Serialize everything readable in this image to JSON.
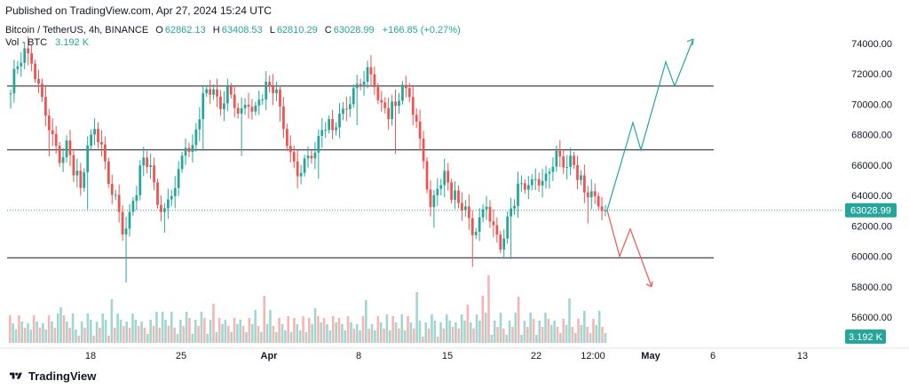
{
  "header": {
    "published": "Published on TradingView.com, Apr 27, 2024 15:24 UTC"
  },
  "legend": {
    "symbol": "Bitcoin / TetherUS, 4h, BINANCE",
    "open_label": "O",
    "open": "62862.13",
    "high_label": "H",
    "high": "63408.53",
    "low_label": "L",
    "low": "62810.29",
    "close_label": "C",
    "close": "63028.99",
    "change": "+166.85 (+0.27%)"
  },
  "volume": {
    "label": "Vol · BTC",
    "value": "3.192 K"
  },
  "footer": {
    "brand": "TradingView"
  },
  "colors": {
    "up": "#26a69a",
    "down": "#ef5350",
    "vol_up": "#9fd6d0",
    "vol_down": "#f7b4b2",
    "level_line": "#131722",
    "price_line": "#26a69a"
  },
  "chart_data": {
    "type": "candlestick",
    "price_axis": {
      "ticks": [
        "74000.00",
        "72000.00",
        "70000.00",
        "68000.00",
        "66000.00",
        "64000.00",
        "62000.00",
        "60000.00",
        "58000.00",
        "56000.00"
      ],
      "ylim": [
        55000,
        75000
      ],
      "last_price_label": "63028.99",
      "volume_label": "3.192 K"
    },
    "time_axis": {
      "labels": [
        "18",
        "25",
        "Apr",
        "8",
        "15",
        "22",
        "12:00",
        "May",
        "6",
        "13"
      ]
    },
    "horizontal_levels": [
      71200,
      67000,
      59900
    ],
    "last_price": 63028.99,
    "closes": [
      71200,
      72500,
      73200,
      72800,
      71000,
      69500,
      67800,
      66500,
      67500,
      65800,
      64500,
      66800,
      68500,
      67000,
      65000,
      63800,
      61800,
      62800,
      64500,
      66500,
      65500,
      63500,
      62800,
      64200,
      65500,
      67500,
      67200,
      69500,
      71000,
      70500,
      69800,
      70800,
      70000,
      69500,
      70200,
      69800,
      70800,
      71200,
      70500,
      68500,
      66500,
      65500,
      66200,
      66800,
      67800,
      68800,
      68300,
      68900,
      69800,
      70700,
      71500,
      72200,
      71500,
      70000,
      69500,
      69900,
      70800,
      70600,
      68500,
      66500,
      63000,
      64800,
      65500,
      64200,
      63500,
      62800,
      61500,
      62200,
      63500,
      61800,
      60800,
      62500,
      63800,
      64800,
      64200,
      65200,
      64600,
      65800,
      66700,
      66200,
      66500,
      65500,
      64200,
      63800,
      63400,
      63029
    ],
    "projection": {
      "bullish": [
        [
          63029,
          "now"
        ],
        [
          68800,
          "peak1"
        ],
        [
          67000,
          "retest1"
        ],
        [
          72800,
          "peak2"
        ],
        [
          71200,
          "retest2"
        ],
        [
          74300,
          "target"
        ]
      ],
      "bearish": [
        [
          63029,
          "now"
        ],
        [
          60000,
          "dip"
        ],
        [
          61800,
          "bounce"
        ],
        [
          58000,
          "target"
        ]
      ]
    }
  }
}
